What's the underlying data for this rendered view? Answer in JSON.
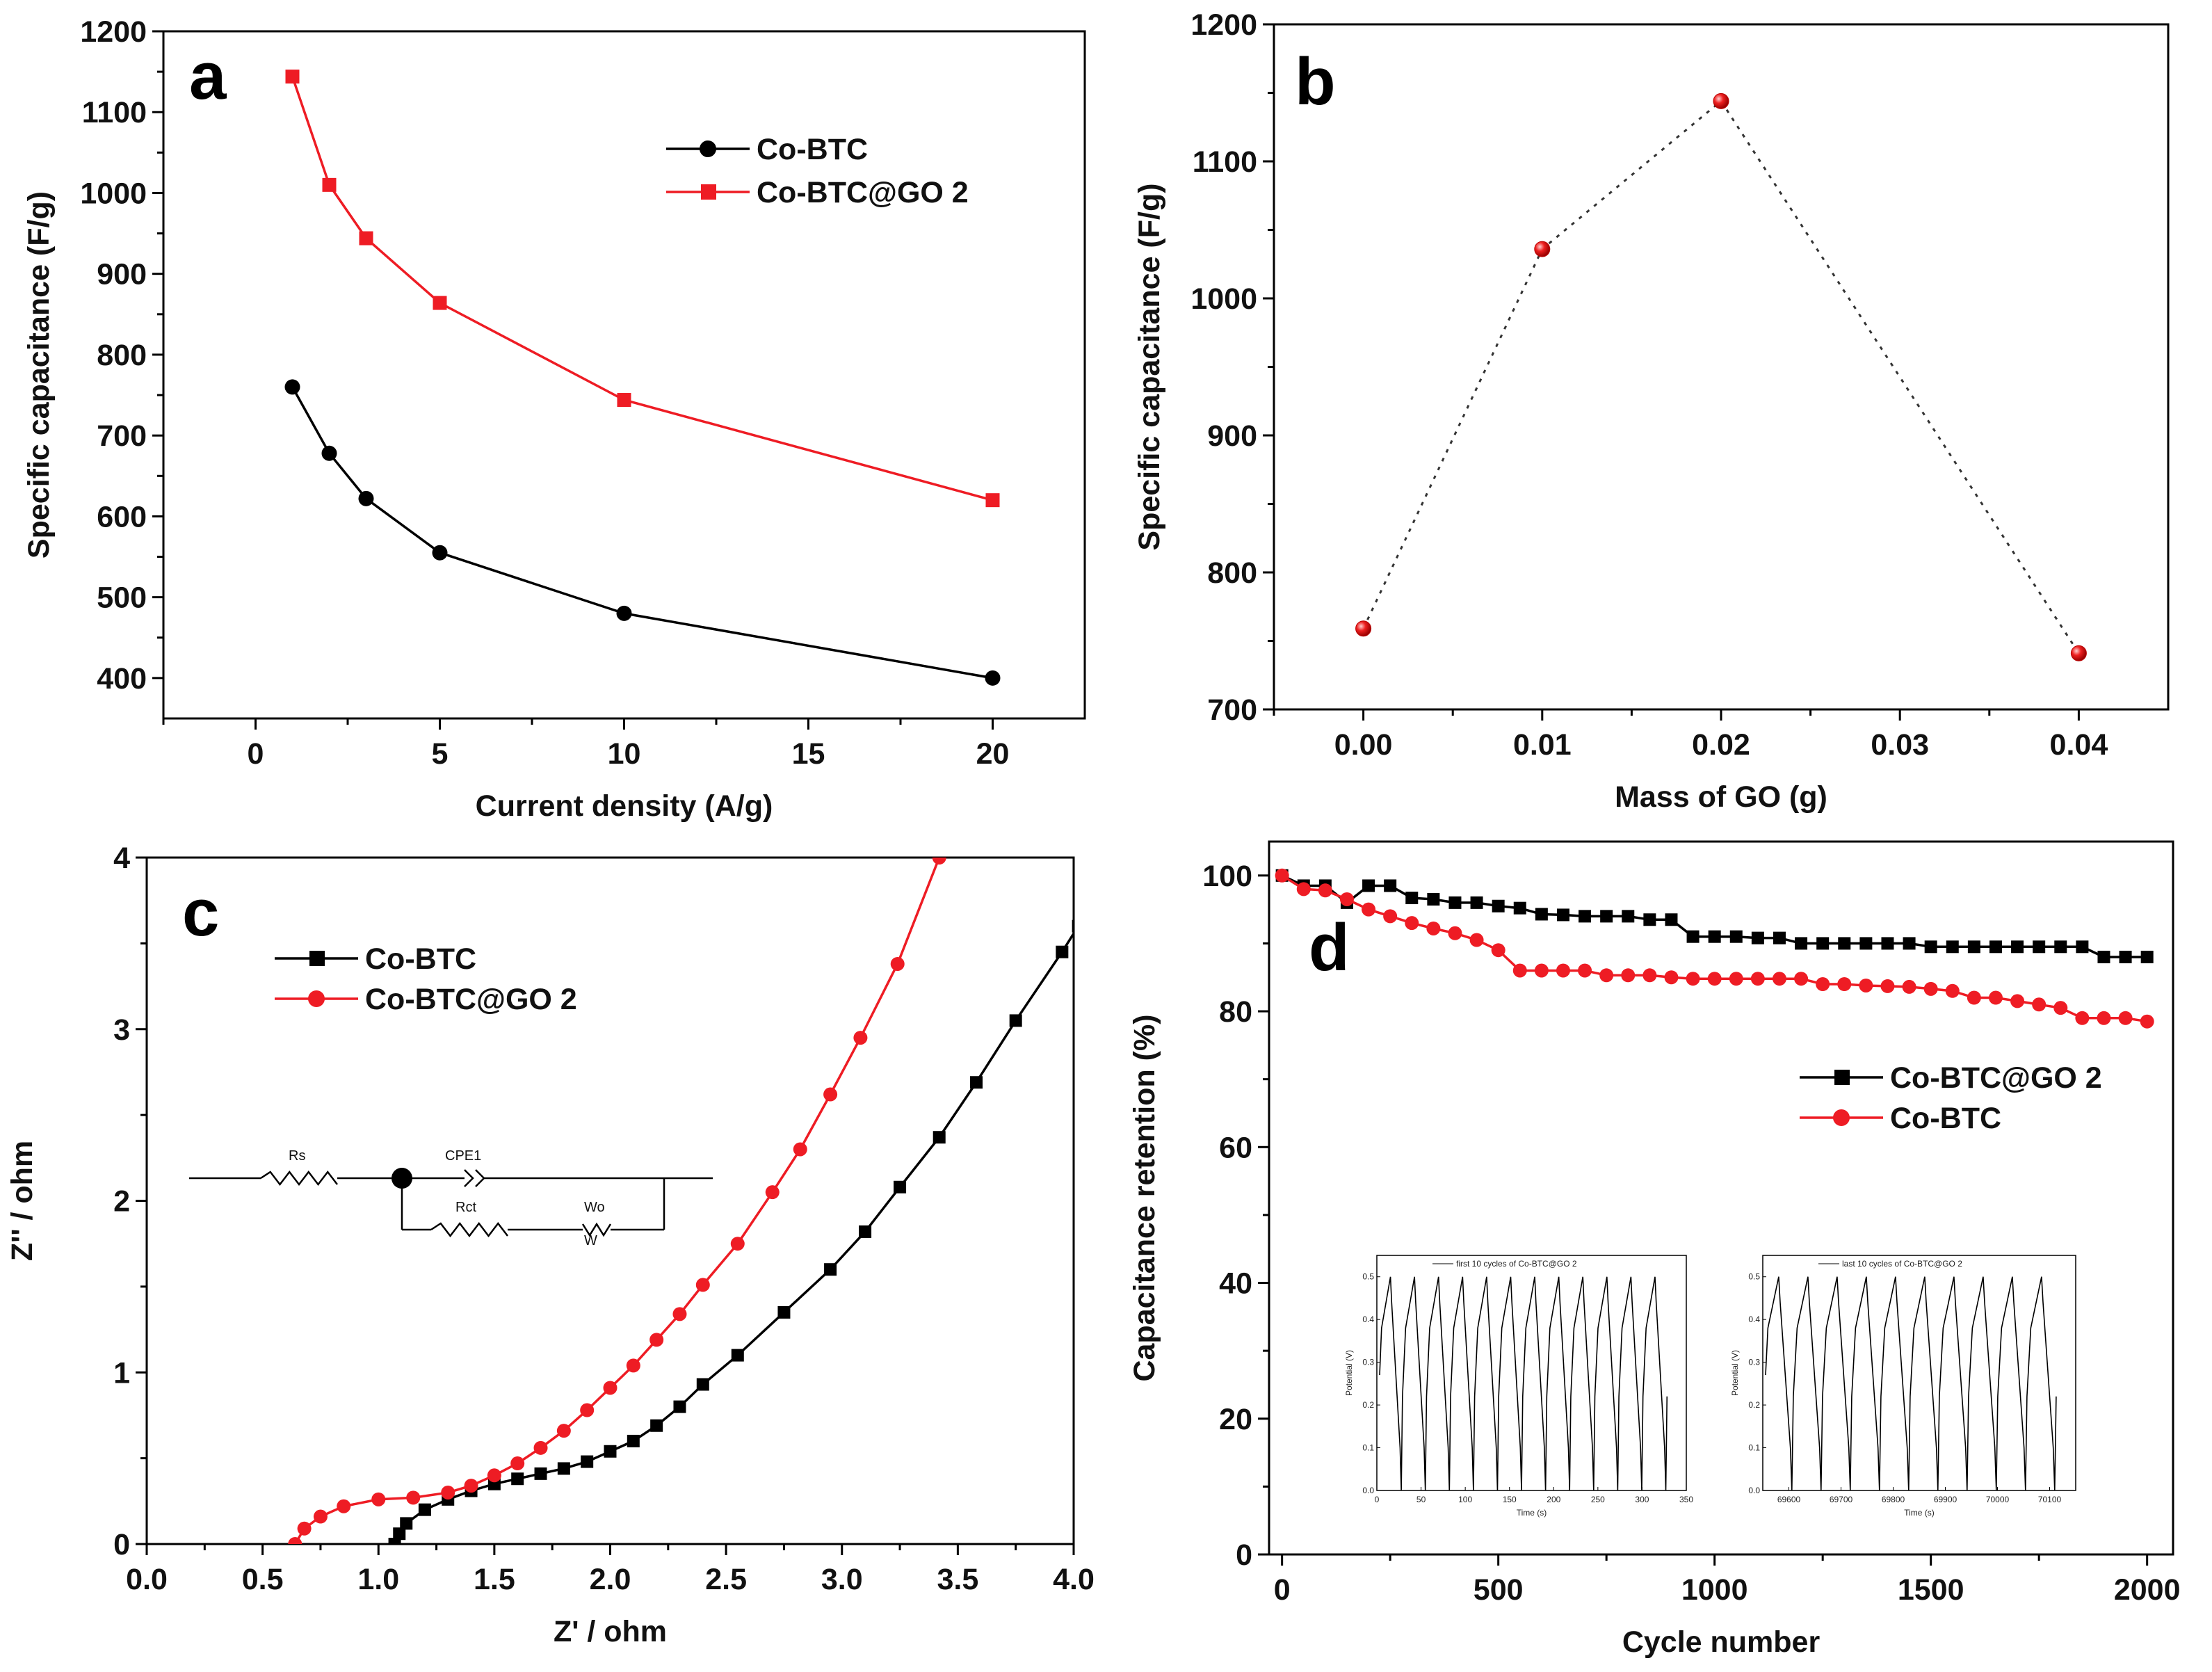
{
  "chart_data": [
    {
      "id": "a",
      "type": "line",
      "panel_label": "a",
      "xlabel": "Current density (A/g)",
      "ylabel": "Specific capacitance (F/g)",
      "xlim": [
        -2.5,
        22.5
      ],
      "ylim": [
        350,
        1200
      ],
      "xticks": [
        0,
        5,
        10,
        15,
        20
      ],
      "yticks": [
        400,
        500,
        600,
        700,
        800,
        900,
        1000,
        1100,
        1200
      ],
      "legend_position": "top-right",
      "series": [
        {
          "name": "Co-BTC",
          "color": "#000000",
          "marker": "circle",
          "x": [
            1,
            2,
            3,
            5,
            10,
            20
          ],
          "y": [
            760,
            678,
            622,
            555,
            480,
            400
          ]
        },
        {
          "name": "Co-BTC@GO 2",
          "color": "#ee1c24",
          "marker": "square",
          "x": [
            1,
            2,
            3,
            5,
            10,
            20
          ],
          "y": [
            1144,
            1010,
            944,
            864,
            744,
            620
          ]
        }
      ]
    },
    {
      "id": "b",
      "type": "scatter",
      "panel_label": "b",
      "xlabel": "Mass of  GO (g)",
      "ylabel": "Specific capacitance (F/g)",
      "xlim": [
        -0.005,
        0.045
      ],
      "ylim": [
        700,
        1200
      ],
      "xticks": [
        "0.00",
        "0.01",
        "0.02",
        "0.03",
        "0.04"
      ],
      "yticks": [
        700,
        800,
        900,
        1000,
        1100,
        1200
      ],
      "series": [
        {
          "name": "Specific capacitance",
          "color": "#ee1c24",
          "marker": "sphere",
          "line": "dotted",
          "x": [
            0.0,
            0.01,
            0.02,
            0.04
          ],
          "y": [
            759,
            1036,
            1144,
            741
          ]
        }
      ]
    },
    {
      "id": "c",
      "type": "line",
      "panel_label": "c",
      "xlabel": "Z' / ohm",
      "ylabel": "Z'' / ohm",
      "xlim": [
        0,
        4
      ],
      "ylim": [
        0,
        4
      ],
      "xticks": [
        "0.0",
        "0.5",
        "1.0",
        "1.5",
        "2.0",
        "2.5",
        "3.0",
        "3.5",
        "4.0"
      ],
      "yticks": [
        0,
        1,
        2,
        3,
        4
      ],
      "legend_position": "top-left",
      "series": [
        {
          "name": "Co-BTC",
          "color": "#000000",
          "marker": "square",
          "x": [
            1.07,
            1.09,
            1.12,
            1.2,
            1.3,
            1.4,
            1.5,
            1.6,
            1.7,
            1.8,
            1.9,
            2.0,
            2.1,
            2.2,
            2.3,
            2.4,
            2.55,
            2.75,
            2.95,
            3.1,
            3.25,
            3.42,
            3.58,
            3.75,
            3.95,
            4.02
          ],
          "y": [
            0.0,
            0.06,
            0.12,
            0.2,
            0.26,
            0.31,
            0.35,
            0.38,
            0.41,
            0.44,
            0.48,
            0.54,
            0.6,
            0.69,
            0.8,
            0.93,
            1.1,
            1.35,
            1.6,
            1.82,
            2.08,
            2.37,
            2.69,
            3.05,
            3.45,
            3.6
          ]
        },
        {
          "name": "Co-BTC@GO 2",
          "color": "#ee1c24",
          "marker": "circle",
          "x": [
            0.64,
            0.68,
            0.75,
            0.85,
            1.0,
            1.15,
            1.3,
            1.4,
            1.5,
            1.6,
            1.7,
            1.8,
            1.9,
            2.0,
            2.1,
            2.2,
            2.3,
            2.4,
            2.55,
            2.7,
            2.82,
            2.95,
            3.08,
            3.24,
            3.42
          ],
          "y": [
            0.0,
            0.09,
            0.16,
            0.22,
            0.26,
            0.27,
            0.3,
            0.34,
            0.4,
            0.47,
            0.56,
            0.66,
            0.78,
            0.91,
            1.04,
            1.19,
            1.34,
            1.51,
            1.75,
            2.05,
            2.3,
            2.62,
            2.95,
            3.38,
            4.0
          ]
        }
      ]
    },
    {
      "id": "d",
      "type": "line",
      "panel_label": "d",
      "xlabel": "Cycle number",
      "ylabel": "Capacitance retention (%)",
      "xlim": [
        -30,
        2060
      ],
      "ylim": [
        0,
        105
      ],
      "xticks": [
        0,
        500,
        1000,
        1500,
        2000
      ],
      "yticks": [
        0,
        20,
        40,
        60,
        80,
        100
      ],
      "legend_position": "middle-right",
      "series": [
        {
          "name": "Co-BTC@GO 2",
          "color": "#000000",
          "marker": "square",
          "x": [
            0,
            50,
            100,
            150,
            200,
            250,
            300,
            350,
            400,
            450,
            500,
            550,
            600,
            650,
            700,
            750,
            800,
            850,
            900,
            950,
            1000,
            1050,
            1100,
            1150,
            1200,
            1250,
            1300,
            1350,
            1400,
            1450,
            1500,
            1550,
            1600,
            1650,
            1700,
            1750,
            1800,
            1850,
            1900,
            1950,
            2000
          ],
          "y": [
            100,
            98.5,
            98.5,
            96,
            98.5,
            98.5,
            96.7,
            96.5,
            96,
            96,
            95.5,
            95.2,
            94.3,
            94.2,
            94,
            94,
            94,
            93.5,
            93.5,
            91,
            91,
            91,
            90.8,
            90.8,
            90,
            90,
            90,
            90,
            90,
            90,
            89.5,
            89.5,
            89.5,
            89.5,
            89.5,
            89.5,
            89.5,
            89.5,
            88,
            88,
            88
          ]
        },
        {
          "name": "Co-BTC",
          "color": "#ee1c24",
          "marker": "circle",
          "x": [
            0,
            50,
            100,
            150,
            200,
            250,
            300,
            350,
            400,
            450,
            500,
            550,
            600,
            650,
            700,
            750,
            800,
            850,
            900,
            950,
            1000,
            1050,
            1100,
            1150,
            1200,
            1250,
            1300,
            1350,
            1400,
            1450,
            1500,
            1550,
            1600,
            1650,
            1700,
            1750,
            1800,
            1850,
            1900,
            1950,
            2000
          ],
          "y": [
            100,
            98,
            97.8,
            96.5,
            95,
            94,
            93,
            92.2,
            91.5,
            90.5,
            89,
            86,
            86,
            86,
            86,
            85.3,
            85.3,
            85.3,
            85,
            84.8,
            84.8,
            84.8,
            84.8,
            84.8,
            84.8,
            84,
            84,
            83.8,
            83.7,
            83.6,
            83.3,
            83,
            82,
            82,
            81.5,
            81,
            80.5,
            79,
            79,
            79,
            78.5
          ]
        }
      ]
    }
  ],
  "panel_c_inset": {
    "components": {
      "rs": "Rs",
      "cpe": "CPE1",
      "rct": "Rct",
      "wo": "Wo",
      "wo_symbol": "W"
    }
  },
  "panel_d_insets": [
    {
      "title": "first 10 cycles of Co-BTC@GO 2",
      "xlabel": "Time (s)",
      "ylabel": "Potential (V)",
      "xlim": [
        0,
        350
      ],
      "ylim": [
        0,
        0.5
      ],
      "xticks": [
        "0",
        "50",
        "100",
        "150",
        "200",
        "250",
        "300",
        "350"
      ],
      "yticks": [
        "0.0",
        "0.1",
        "0.2",
        "0.3",
        "0.4",
        "0.5"
      ]
    },
    {
      "title": "last 10 cycles of Co-BTC@GO 2",
      "xlabel": "Time (s)",
      "ylabel": "Potential (V)",
      "xlim": [
        69550,
        70150
      ],
      "ylim": [
        0,
        0.5
      ],
      "xticks": [
        "69600",
        "69700",
        "69800",
        "69900",
        "70000",
        "70100"
      ],
      "yticks": [
        "0.0",
        "0.1",
        "0.2",
        "0.3",
        "0.4",
        "0.5"
      ]
    }
  ]
}
